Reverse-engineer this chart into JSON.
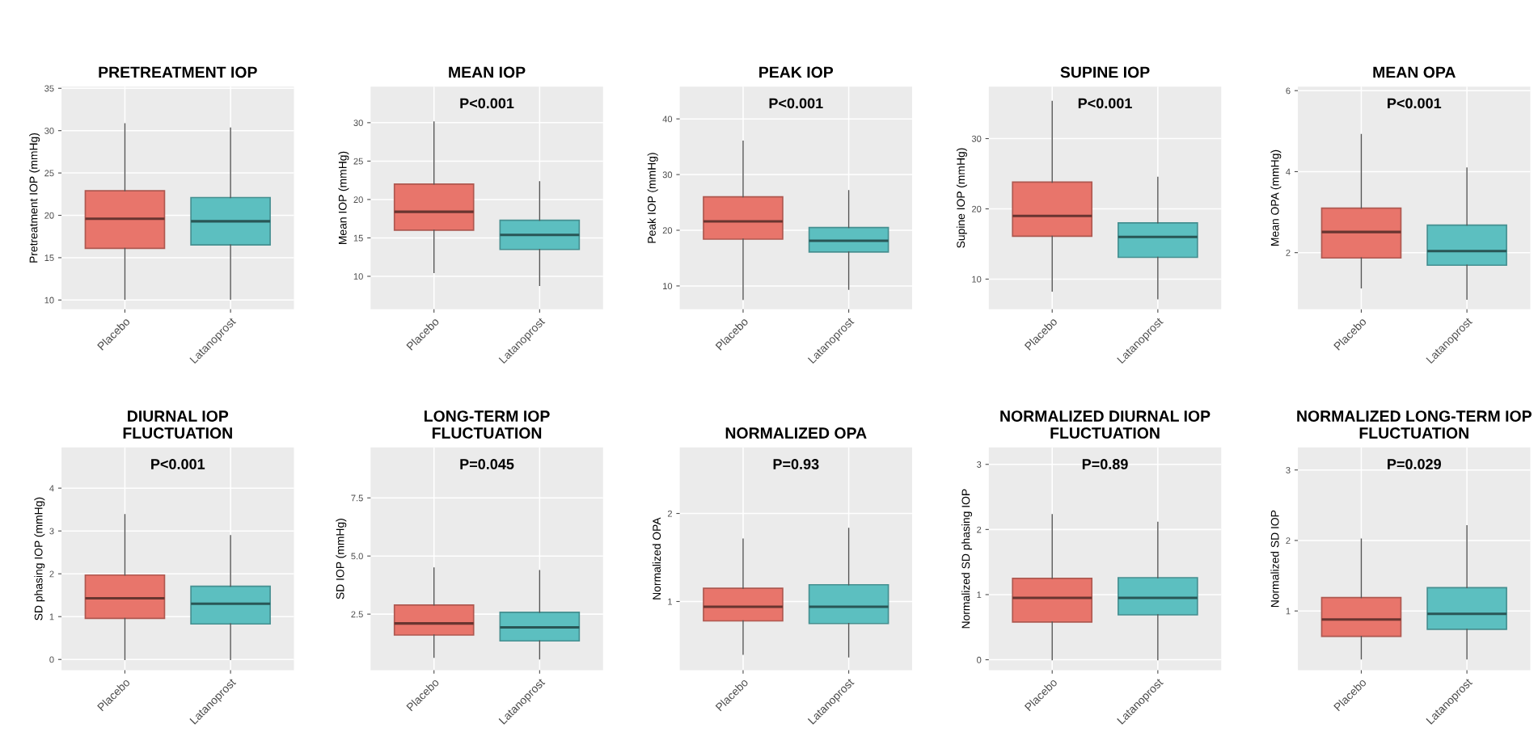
{
  "chart_data": [
    {
      "type": "box",
      "title": "PRETREATMENT IOP",
      "ylabel": "Pretreatment IOP (mmHg)",
      "categories": [
        "Placebo",
        "Latanoprost"
      ],
      "colors": [
        "#e8756b",
        "#5cbfc0"
      ],
      "grid": true,
      "ylim": [
        8.9,
        35.2
      ],
      "yticks": [
        10,
        15,
        20,
        25,
        30,
        35
      ],
      "boxes": [
        {
          "low": 10.1,
          "q1": 16.1,
          "median": 19.6,
          "q3": 22.9,
          "high": 30.8
        },
        {
          "low": 10.1,
          "q1": 16.5,
          "median": 19.3,
          "q3": 22.1,
          "high": 30.3
        }
      ]
    },
    {
      "type": "box",
      "title": "MEAN IOP",
      "annotations": [
        "P<0.001"
      ],
      "ylabel": "Mean IOP (mmHg)",
      "categories": [
        "Placebo",
        "Latanoprost"
      ],
      "colors": [
        "#e8756b",
        "#5cbfc0"
      ],
      "grid": true,
      "ylim": [
        5.7,
        34.7
      ],
      "yticks": [
        10,
        15,
        20,
        25,
        30
      ],
      "boxes": [
        {
          "low": 10.5,
          "q1": 16.0,
          "median": 18.4,
          "q3": 22.0,
          "high": 30.1
        },
        {
          "low": 8.8,
          "q1": 13.5,
          "median": 15.4,
          "q3": 17.3,
          "high": 22.3
        }
      ]
    },
    {
      "type": "box",
      "title": "PEAK IOP",
      "annotations": [
        "P<0.001"
      ],
      "ylabel": "Peak IOP (mmHg)",
      "categories": [
        "Placebo",
        "Latanoprost"
      ],
      "colors": [
        "#e8756b",
        "#5cbfc0"
      ],
      "grid": true,
      "ylim": [
        5.8,
        45.8
      ],
      "yticks": [
        10,
        20,
        30,
        40
      ],
      "boxes": [
        {
          "low": 7.6,
          "q1": 18.4,
          "median": 21.6,
          "q3": 26.0,
          "high": 36.0
        },
        {
          "low": 9.4,
          "q1": 16.1,
          "median": 18.1,
          "q3": 20.5,
          "high": 27.1
        }
      ]
    },
    {
      "type": "box",
      "title": "SUPINE IOP",
      "annotations": [
        "P<0.001"
      ],
      "ylabel": "Supine IOP (mmHg)",
      "categories": [
        "Placebo",
        "Latanoprost"
      ],
      "colors": [
        "#e8756b",
        "#5cbfc0"
      ],
      "grid": true,
      "ylim": [
        5.7,
        37.4
      ],
      "yticks": [
        10,
        20,
        30
      ],
      "boxes": [
        {
          "low": 8.3,
          "q1": 16.1,
          "median": 19.0,
          "q3": 23.8,
          "high": 35.3
        },
        {
          "low": 7.2,
          "q1": 13.1,
          "median": 16.0,
          "q3": 18.0,
          "high": 24.5
        }
      ]
    },
    {
      "type": "box",
      "title": "MEAN OPA",
      "annotations": [
        "P<0.001"
      ],
      "ylabel": "Mean OPA (mmHg)",
      "categories": [
        "Placebo",
        "Latanoprost"
      ],
      "colors": [
        "#e8756b",
        "#5cbfc0"
      ],
      "grid": true,
      "ylim": [
        0.6,
        6.1
      ],
      "yticks": [
        2,
        4,
        6
      ],
      "boxes": [
        {
          "low": 1.13,
          "q1": 1.87,
          "median": 2.51,
          "q3": 3.1,
          "high": 4.92
        },
        {
          "low": 0.85,
          "q1": 1.69,
          "median": 2.04,
          "q3": 2.68,
          "high": 4.09
        }
      ]
    },
    {
      "type": "box",
      "title": "DIURNAL IOP\nFLUCTUATION",
      "annotations": [
        "P<0.001"
      ],
      "ylabel": "SD phasing IOP (mmHg)",
      "categories": [
        "Placebo",
        "Latanoprost"
      ],
      "colors": [
        "#e8756b",
        "#5cbfc0"
      ],
      "grid": true,
      "ylim": [
        -0.25,
        4.95
      ],
      "yticks": [
        0,
        1,
        2,
        3,
        4
      ],
      "boxes": [
        {
          "low": 0,
          "q1": 0.96,
          "median": 1.43,
          "q3": 1.97,
          "high": 3.38
        },
        {
          "low": 0,
          "q1": 0.83,
          "median": 1.3,
          "q3": 1.71,
          "high": 2.89
        }
      ]
    },
    {
      "type": "box",
      "title": "LONG-TERM IOP\nFLUCTUATION",
      "annotations": [
        "P=0.045"
      ],
      "ylabel": "SD IOP (mmHg)",
      "categories": [
        "Placebo",
        "Latanoprost"
      ],
      "colors": [
        "#e8756b",
        "#5cbfc0"
      ],
      "grid": true,
      "ylim": [
        0.09,
        9.67
      ],
      "yticks": [
        2.5,
        {
          "value": 5,
          "label": "5.0"
        },
        7.5
      ],
      "boxes": [
        {
          "low": 0.64,
          "q1": 1.6,
          "median": 2.1,
          "q3": 2.89,
          "high": 4.49
        },
        {
          "low": 0.57,
          "q1": 1.35,
          "median": 1.93,
          "q3": 2.58,
          "high": 4.37
        }
      ]
    },
    {
      "type": "box",
      "title": "NORMALIZED OPA",
      "annotations": [
        "P=0.93"
      ],
      "ylabel": "Normalized OPA",
      "categories": [
        "Placebo",
        "Latanoprost"
      ],
      "colors": [
        "#e8756b",
        "#5cbfc0"
      ],
      "grid": true,
      "ylim": [
        0.22,
        2.75
      ],
      "yticks": [
        1,
        2
      ],
      "boxes": [
        {
          "low": 0.4,
          "q1": 0.78,
          "median": 0.94,
          "q3": 1.15,
          "high": 1.71
        },
        {
          "low": 0.37,
          "q1": 0.75,
          "median": 0.94,
          "q3": 1.19,
          "high": 1.83
        }
      ]
    },
    {
      "type": "box",
      "title": "NORMALIZED DIURNAL IOP\nFLUCTUATION",
      "annotations": [
        "P=0.89"
      ],
      "ylabel": "Normalized SD phasing IOP",
      "categories": [
        "Placebo",
        "Latanoprost"
      ],
      "colors": [
        "#e8756b",
        "#5cbfc0"
      ],
      "grid": true,
      "ylim": [
        -0.16,
        3.26
      ],
      "yticks": [
        0,
        1,
        2,
        3
      ],
      "boxes": [
        {
          "low": 0,
          "q1": 0.58,
          "median": 0.95,
          "q3": 1.25,
          "high": 2.23
        },
        {
          "low": 0,
          "q1": 0.69,
          "median": 0.95,
          "q3": 1.26,
          "high": 2.11
        }
      ]
    },
    {
      "type": "box",
      "title": "NORMALIZED LONG-TERM IOP\nFLUCTUATION",
      "annotations": [
        "P=0.029"
      ],
      "ylabel": "Normalized SD IOP",
      "categories": [
        "Placebo",
        "Latanoprost"
      ],
      "colors": [
        "#e8756b",
        "#5cbfc0"
      ],
      "grid": true,
      "ylim": [
        0.16,
        3.32
      ],
      "yticks": [
        1,
        2,
        3
      ],
      "boxes": [
        {
          "low": 0.32,
          "q1": 0.64,
          "median": 0.88,
          "q3": 1.19,
          "high": 2.02
        },
        {
          "low": 0.32,
          "q1": 0.74,
          "median": 0.96,
          "q3": 1.33,
          "high": 2.21
        }
      ]
    }
  ]
}
